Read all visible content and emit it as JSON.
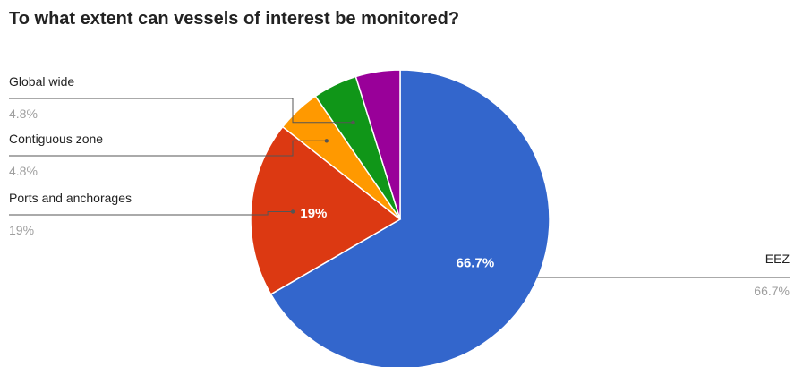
{
  "chart_data": {
    "type": "pie",
    "title": "To what extent can vessels of interest be monitored?",
    "slices": [
      {
        "name": "EEZ",
        "value": 66.7,
        "label": "66.7%",
        "color": "#3366cc"
      },
      {
        "name": "Ports and anchorages",
        "value": 19,
        "label": "19%",
        "color": "#dc3912"
      },
      {
        "name": "Contiguous zone",
        "value": 4.8,
        "label": "4.8%",
        "color": "#ff9900"
      },
      {
        "name": "Global wide",
        "value": 4.8,
        "label": "4.8%",
        "color": "#109618"
      },
      {
        "name": "",
        "value": 4.8,
        "label": "",
        "color": "#990099"
      }
    ],
    "legend": "labeled-callouts"
  }
}
